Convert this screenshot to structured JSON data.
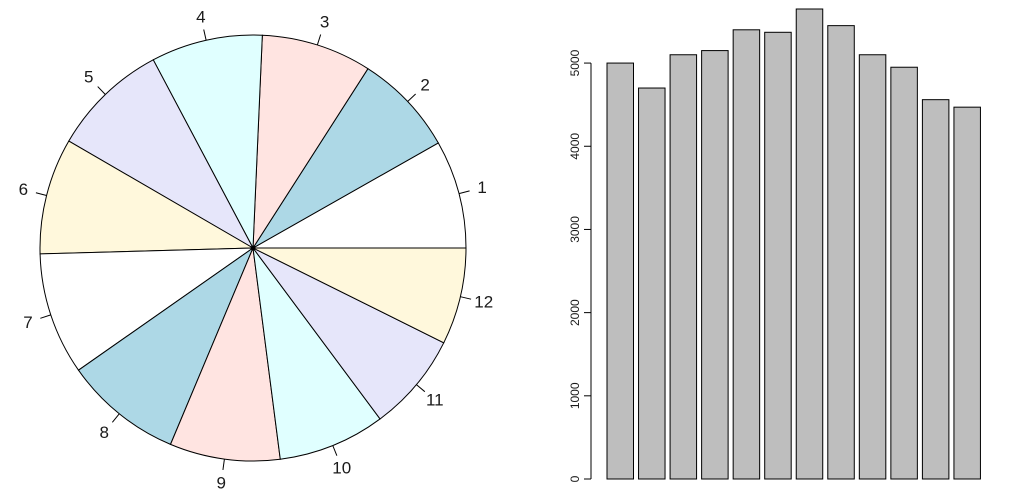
{
  "chart_data": [
    {
      "type": "pie",
      "labels": [
        "1",
        "2",
        "3",
        "4",
        "5",
        "6",
        "7",
        "8",
        "9",
        "10",
        "11",
        "12"
      ],
      "values": [
        5000,
        4700,
        5100,
        5150,
        5400,
        5370,
        5650,
        5450,
        5100,
        4950,
        4560,
        4470
      ],
      "colors": [
        "#ffffff",
        "#add8e6",
        "#ffe4e1",
        "#e0ffff",
        "#e6e6fa",
        "#fff8dc",
        "#ffffff",
        "#add8e6",
        "#ffe4e1",
        "#e0ffff",
        "#e6e6fa",
        "#fff8dc"
      ],
      "direction": "counterclockwise",
      "start": "3 o'clock"
    },
    {
      "type": "bar",
      "categories": [
        "1",
        "2",
        "3",
        "4",
        "5",
        "6",
        "7",
        "8",
        "9",
        "10",
        "11",
        "12"
      ],
      "values": [
        5000,
        4700,
        5100,
        5150,
        5400,
        5370,
        5650,
        5450,
        5100,
        4950,
        4560,
        4470
      ],
      "ylim": [
        0,
        5650
      ],
      "yticks": [
        "0",
        "1000",
        "2000",
        "3000",
        "4000",
        "5000"
      ],
      "bar_color": "#bebebe",
      "grid": false,
      "title": "",
      "xlabel": "",
      "ylabel": ""
    }
  ]
}
